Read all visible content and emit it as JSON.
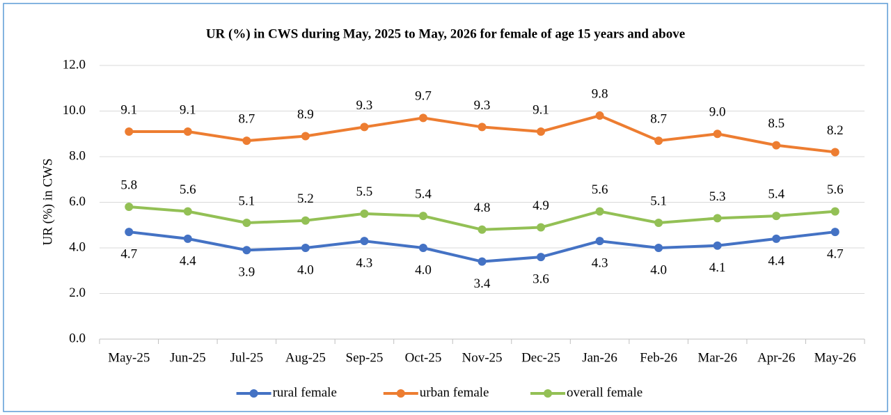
{
  "chart_data": {
    "type": "line",
    "title": "UR (%) in CWS during May, 2025 to May, 2026 for female of age 15 years and above",
    "y_label": "UR (%) in CWS",
    "categories": [
      "May-25",
      "Jun-25",
      "Jul-25",
      "Aug-25",
      "Sep-25",
      "Oct-25",
      "Nov-25",
      "Dec-25",
      "Jan-26",
      "Feb-26",
      "Mar-26",
      "Apr-26",
      "May-26"
    ],
    "series": [
      {
        "name": "rural female",
        "color": "#4472c4",
        "values": [
          4.7,
          4.4,
          3.9,
          4.0,
          4.3,
          4.0,
          3.4,
          3.6,
          4.3,
          4.0,
          4.1,
          4.4,
          4.7
        ],
        "value_labels": [
          "4.7",
          "4.4",
          "3.9",
          "4.0",
          "4.3",
          "4.0",
          "3.4",
          "3.6",
          "4.3",
          "4.0",
          "4.1",
          "4.4",
          "4.7"
        ]
      },
      {
        "name": "urban female",
        "color": "#ed7d31",
        "values": [
          9.1,
          9.1,
          8.7,
          8.9,
          9.3,
          9.7,
          9.3,
          9.1,
          9.8,
          8.7,
          9.0,
          8.5,
          8.2
        ],
        "value_labels": [
          "9.1",
          "9.1",
          "8.7",
          "8.9",
          "9.3",
          "9.7",
          "9.3",
          "9.1",
          "9.8",
          "8.7",
          "9.0",
          "8.5",
          "8.2"
        ]
      },
      {
        "name": "overall female",
        "color": "#93c055",
        "values": [
          5.8,
          5.6,
          5.1,
          5.2,
          5.5,
          5.4,
          4.8,
          4.9,
          5.6,
          5.1,
          5.3,
          5.4,
          5.6
        ],
        "value_labels": [
          "5.8",
          "5.6",
          "5.1",
          "5.2",
          "5.5",
          "5.4",
          "4.8",
          "4.9",
          "5.6",
          "5.1",
          "5.3",
          "5.4",
          "5.6"
        ]
      }
    ],
    "ylim": [
      0,
      12
    ],
    "yticks": [
      {
        "value": 0,
        "label": "0.0"
      },
      {
        "value": 2,
        "label": "2.0"
      },
      {
        "value": 4,
        "label": "4.0"
      },
      {
        "value": 6,
        "label": "6.0"
      },
      {
        "value": 8,
        "label": "8.0"
      },
      {
        "value": 10,
        "label": "10.0"
      },
      {
        "value": 12,
        "label": "12.0"
      }
    ],
    "grid": true,
    "legend": "bottom"
  }
}
